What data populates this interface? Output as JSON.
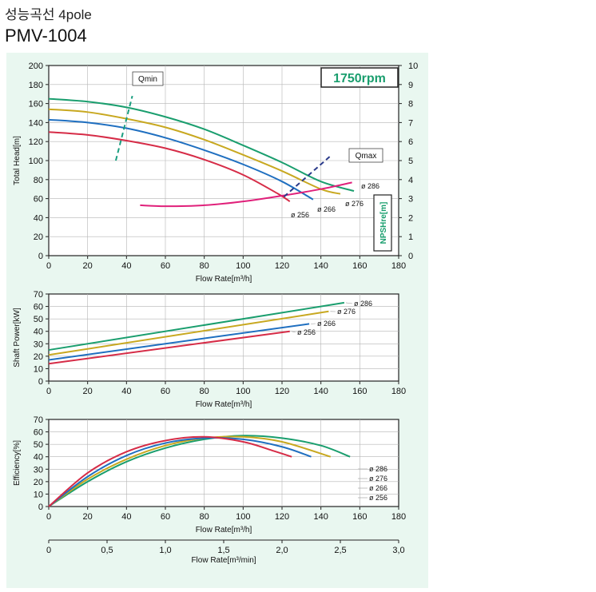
{
  "header": {
    "title_ko": "성능곡선 4pole",
    "model": "PMV-1004"
  },
  "colors": {
    "panel_bg": "#e9f7f0",
    "d286": "#1a9e6e",
    "d276": "#c8a820",
    "d266": "#1f6fc0",
    "d256": "#d62c47",
    "npsh": "#e0207a",
    "qmin": "#1a9e80",
    "qmax": "#2a3a8a"
  },
  "chart_data": [
    {
      "id": "head",
      "type": "line",
      "xlabel": "Flow Rate[m³/h]",
      "ylabel": "Total Head[m]",
      "y2label": "NPSHre[m]",
      "xlim": [
        0,
        180
      ],
      "ylim": [
        0,
        200
      ],
      "y2lim": [
        0,
        10
      ],
      "xticks": [
        "0",
        "20",
        "40",
        "60",
        "80",
        "100",
        "120",
        "140",
        "160",
        "180"
      ],
      "yticks": [
        "0",
        "20",
        "40",
        "60",
        "80",
        "100",
        "120",
        "140",
        "160",
        "180",
        "200"
      ],
      "y2ticks": [
        "0",
        "1",
        "2",
        "3",
        "4",
        "5",
        "6",
        "7",
        "8",
        "9",
        "10"
      ],
      "speed_label": "1750rpm",
      "qmin_label": "Qmin",
      "qmax_label": "Qmax",
      "series": [
        {
          "name": "ø 286",
          "key": "d286",
          "x": [
            0,
            20,
            40,
            60,
            80,
            100,
            120,
            140,
            157
          ],
          "y": [
            165,
            162,
            156,
            146,
            133,
            116,
            98,
            78,
            68
          ]
        },
        {
          "name": "ø 276",
          "key": "d276",
          "x": [
            0,
            20,
            40,
            60,
            80,
            100,
            120,
            140,
            150
          ],
          "y": [
            154,
            151,
            144,
            135,
            122,
            106,
            89,
            70,
            65
          ]
        },
        {
          "name": "ø 266",
          "key": "d266",
          "x": [
            0,
            20,
            40,
            60,
            80,
            100,
            120,
            136
          ],
          "y": [
            143,
            140,
            134,
            124,
            111,
            96,
            78,
            59
          ]
        },
        {
          "name": "ø 256",
          "key": "d256",
          "x": [
            0,
            20,
            40,
            60,
            80,
            100,
            118,
            124
          ],
          "y": [
            130,
            127,
            121,
            113,
            101,
            85,
            65,
            57
          ]
        }
      ],
      "npsh": {
        "name": "NPSHre",
        "x": [
          47,
          60,
          80,
          100,
          120,
          140,
          156
        ],
        "y": [
          2.65,
          2.6,
          2.65,
          2.85,
          3.15,
          3.5,
          3.85
        ]
      },
      "qmin_line": {
        "x": [
          34.5,
          43
        ],
        "y": [
          100,
          168
        ]
      },
      "qmax_line": {
        "x": [
          121,
          145
        ],
        "y": [
          62,
          105
        ]
      }
    },
    {
      "id": "power",
      "type": "line",
      "xlabel": "Flow Rate[m³/h]",
      "ylabel": "Shaft Power[kW]",
      "xlim": [
        0,
        180
      ],
      "ylim": [
        0,
        70
      ],
      "xticks": [
        "0",
        "20",
        "40",
        "60",
        "80",
        "100",
        "120",
        "140",
        "160",
        "180"
      ],
      "yticks": [
        "0",
        "10",
        "20",
        "30",
        "40",
        "50",
        "60",
        "70"
      ],
      "series": [
        {
          "name": "ø 286",
          "key": "d286",
          "x": [
            0,
            152
          ],
          "y": [
            25,
            63
          ]
        },
        {
          "name": "ø 276",
          "key": "d276",
          "x": [
            0,
            144
          ],
          "y": [
            21,
            56
          ]
        },
        {
          "name": "ø 266",
          "key": "d266",
          "x": [
            0,
            134
          ],
          "y": [
            17,
            46
          ]
        },
        {
          "name": "ø 256",
          "key": "d256",
          "x": [
            0,
            124
          ],
          "y": [
            14,
            40
          ]
        }
      ]
    },
    {
      "id": "efficiency",
      "type": "line",
      "xlabel": "Flow Rate[m³/h]",
      "ylabel": "Efficiency[%]",
      "xlim": [
        0,
        180
      ],
      "ylim": [
        0,
        70
      ],
      "xticks": [
        "0",
        "20",
        "40",
        "60",
        "80",
        "100",
        "120",
        "140",
        "160",
        "180"
      ],
      "yticks": [
        "0",
        "10",
        "20",
        "30",
        "40",
        "50",
        "60",
        "70"
      ],
      "legend": [
        "ø 286",
        "ø 276",
        "ø 266",
        "ø 256"
      ],
      "series": [
        {
          "name": "ø 286",
          "key": "d286",
          "x": [
            0,
            20,
            40,
            60,
            80,
            100,
            120,
            140,
            155
          ],
          "y": [
            0,
            20,
            36,
            47,
            54,
            57,
            55,
            49,
            40
          ]
        },
        {
          "name": "ø 276",
          "key": "d276",
          "x": [
            0,
            20,
            40,
            60,
            80,
            100,
            120,
            145
          ],
          "y": [
            0,
            22,
            38,
            49,
            55,
            56,
            52,
            40
          ]
        },
        {
          "name": "ø 266",
          "key": "d266",
          "x": [
            0,
            20,
            40,
            60,
            80,
            100,
            120,
            135
          ],
          "y": [
            0,
            24,
            41,
            51,
            55,
            54,
            48,
            40
          ]
        },
        {
          "name": "ø 256",
          "key": "d256",
          "x": [
            0,
            20,
            40,
            60,
            80,
            100,
            115,
            125
          ],
          "y": [
            0,
            27,
            44,
            53,
            56,
            52,
            45,
            40
          ]
        }
      ]
    },
    {
      "id": "flow_lpm",
      "type": "axis",
      "xlabel": "Flow Rate[m³/min]",
      "xlim": [
        0,
        3.0
      ],
      "xticks": [
        "0",
        "0,5",
        "1,0",
        "1,5",
        "2,0",
        "2,5",
        "3,0"
      ]
    }
  ]
}
